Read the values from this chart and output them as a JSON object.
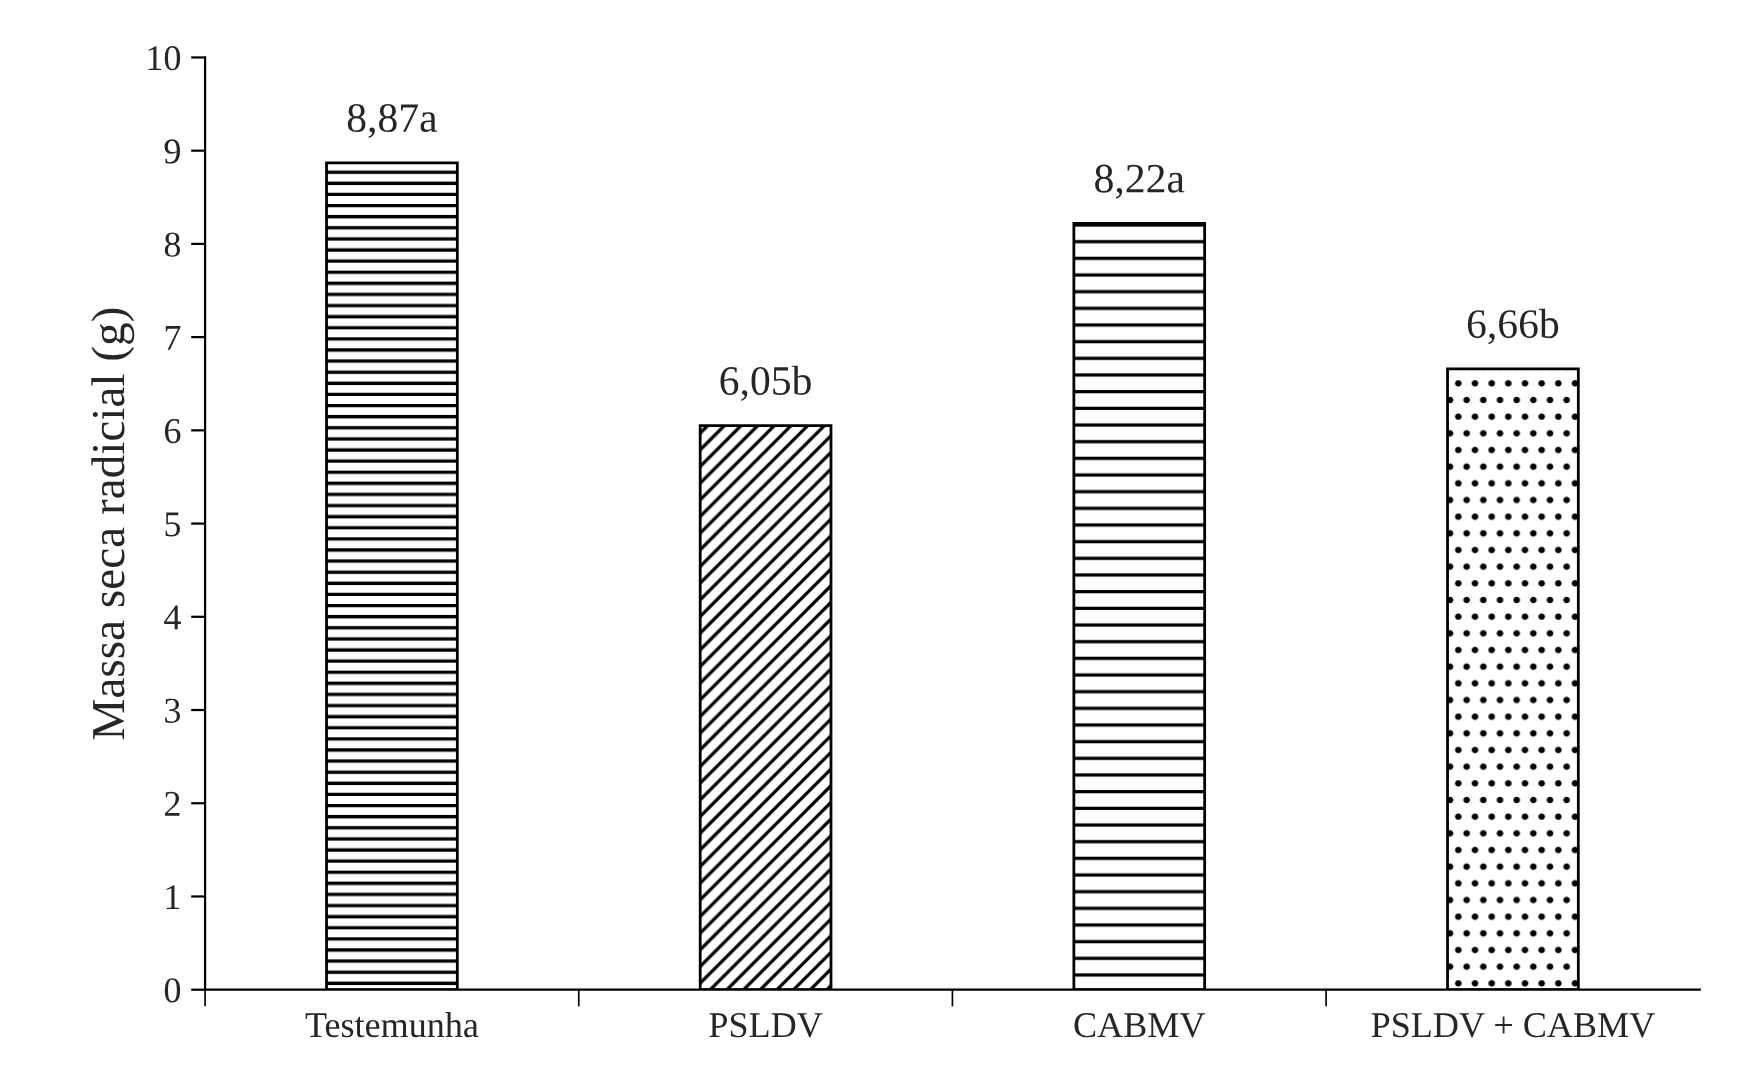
{
  "chart_data": {
    "type": "bar",
    "ylabel": "Massa seca radicial (g)",
    "categories": [
      "Testemunha",
      "PSLDV",
      "CABMV",
      "PSLDV + CABMV"
    ],
    "values": [
      8.87,
      6.05,
      8.22,
      6.66
    ],
    "value_labels": [
      "8,87a",
      "6,05b",
      "8,22a",
      "6,66b"
    ],
    "color": "#000000",
    "ylim": [
      0,
      10
    ],
    "yticks": [
      0,
      1,
      2,
      3,
      4,
      5,
      6,
      7,
      8,
      9,
      10
    ],
    "grid": false
  }
}
